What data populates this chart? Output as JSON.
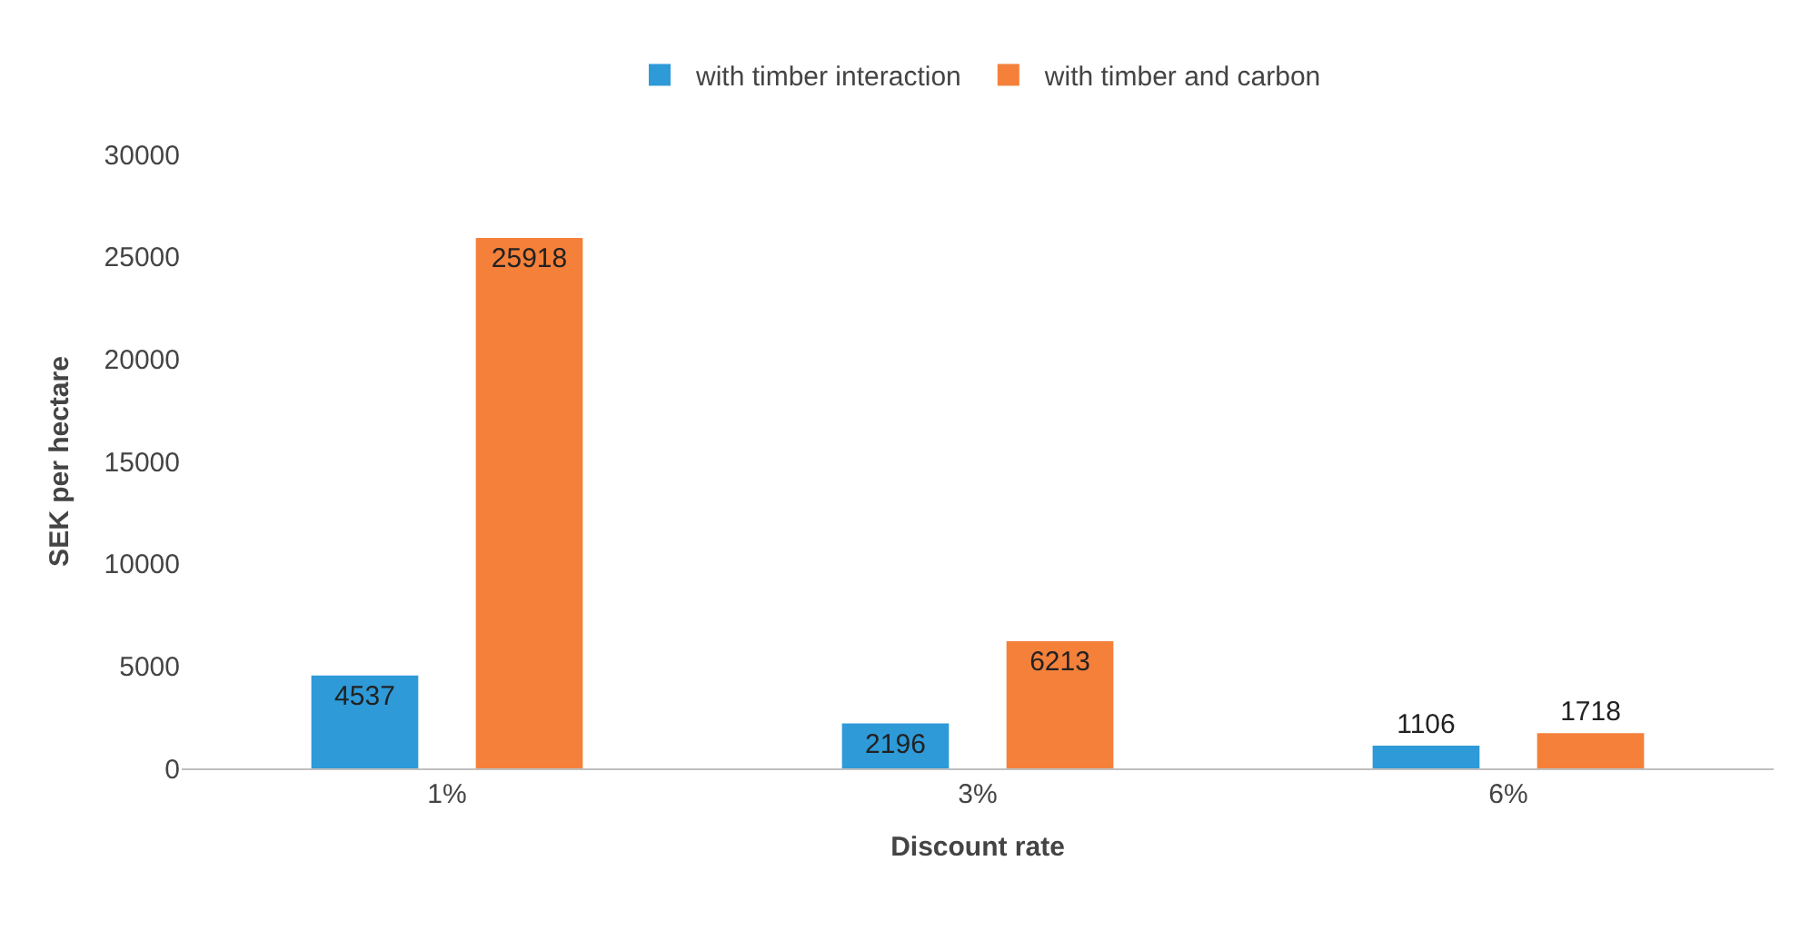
{
  "chart_data": {
    "type": "bar",
    "xlabel": "Discount rate",
    "ylabel": "SEK per hectare",
    "categories": [
      "1%",
      "3%",
      "6%"
    ],
    "series": [
      {
        "name": "with timber interaction",
        "color": "#2e9ad8",
        "values": [
          4537,
          2196,
          1106
        ]
      },
      {
        "name": "with timber and carbon",
        "color": "#f4803a",
        "values": [
          25918,
          6213,
          1718
        ]
      }
    ],
    "ylim": [
      0,
      30000
    ],
    "yticks": [
      0,
      5000,
      10000,
      15000,
      20000,
      25000,
      30000
    ],
    "data_labels": true,
    "legend": "top"
  }
}
